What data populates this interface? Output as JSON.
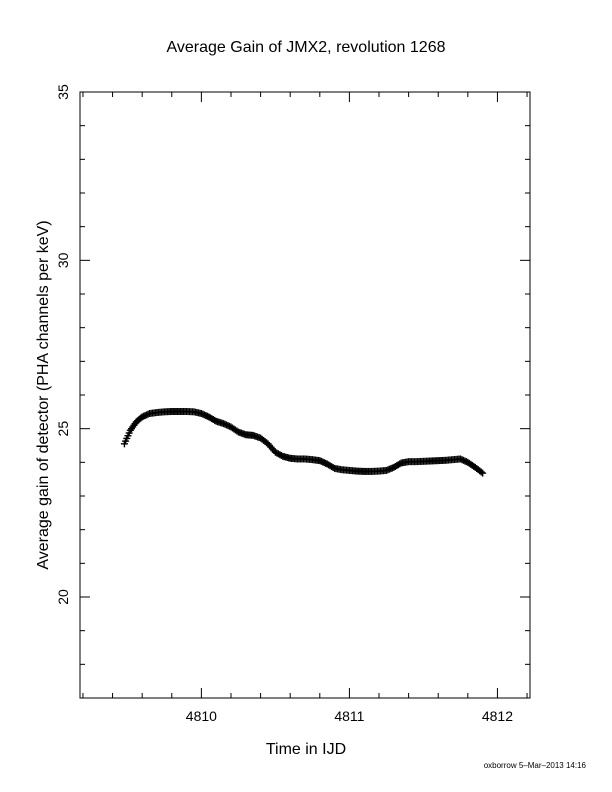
{
  "chart_data": {
    "type": "scatter",
    "title": "Average Gain of JMX2, revolution 1268",
    "xlabel": "Time in IJD",
    "ylabel": "Average gain of detector (PHA channels per keV)",
    "xlim": [
      4809.18,
      4812.22
    ],
    "ylim": [
      17,
      35
    ],
    "x_major_ticks": [
      4810,
      4811,
      4812
    ],
    "x_tick_labels": [
      "4810",
      "4811",
      "4812"
    ],
    "y_major_ticks": [
      20,
      25,
      30,
      35
    ],
    "y_tick_labels": [
      "20",
      "25",
      "30",
      "35"
    ],
    "grid": false,
    "legend": "none",
    "marker": "+",
    "series": [
      {
        "x": [
          4809.48,
          4809.52,
          4809.56,
          4809.6,
          4809.65,
          4809.7,
          4809.75,
          4809.8,
          4809.85,
          4809.9,
          4809.95,
          4810.0,
          4810.05,
          4810.1,
          4810.15,
          4810.2,
          4810.25,
          4810.3,
          4810.35,
          4810.4,
          4810.45,
          4810.5,
          4810.55,
          4810.6,
          4810.65,
          4810.7,
          4810.75,
          4810.8,
          4810.85,
          4810.9,
          4810.95,
          4811.0,
          4811.05,
          4811.1,
          4811.15,
          4811.2,
          4811.25,
          4811.3,
          4811.35,
          4811.4,
          4811.45,
          4811.5,
          4811.55,
          4811.6,
          4811.65,
          4811.7,
          4811.75,
          4811.8,
          4811.85,
          4811.9
        ],
        "y": [
          24.55,
          24.95,
          25.2,
          25.35,
          25.45,
          25.48,
          25.5,
          25.51,
          25.51,
          25.51,
          25.5,
          25.45,
          25.35,
          25.22,
          25.15,
          25.05,
          24.9,
          24.82,
          24.8,
          24.72,
          24.55,
          24.3,
          24.18,
          24.12,
          24.1,
          24.1,
          24.08,
          24.05,
          23.95,
          23.82,
          23.78,
          23.76,
          23.74,
          23.73,
          23.73,
          23.74,
          23.76,
          23.85,
          23.98,
          24.02,
          24.02,
          24.03,
          24.04,
          24.05,
          24.06,
          24.08,
          24.1,
          24.0,
          23.85,
          23.68
        ]
      }
    ]
  },
  "footer": {
    "credit": "oxborrow  5–Mar–2013 14:16"
  }
}
